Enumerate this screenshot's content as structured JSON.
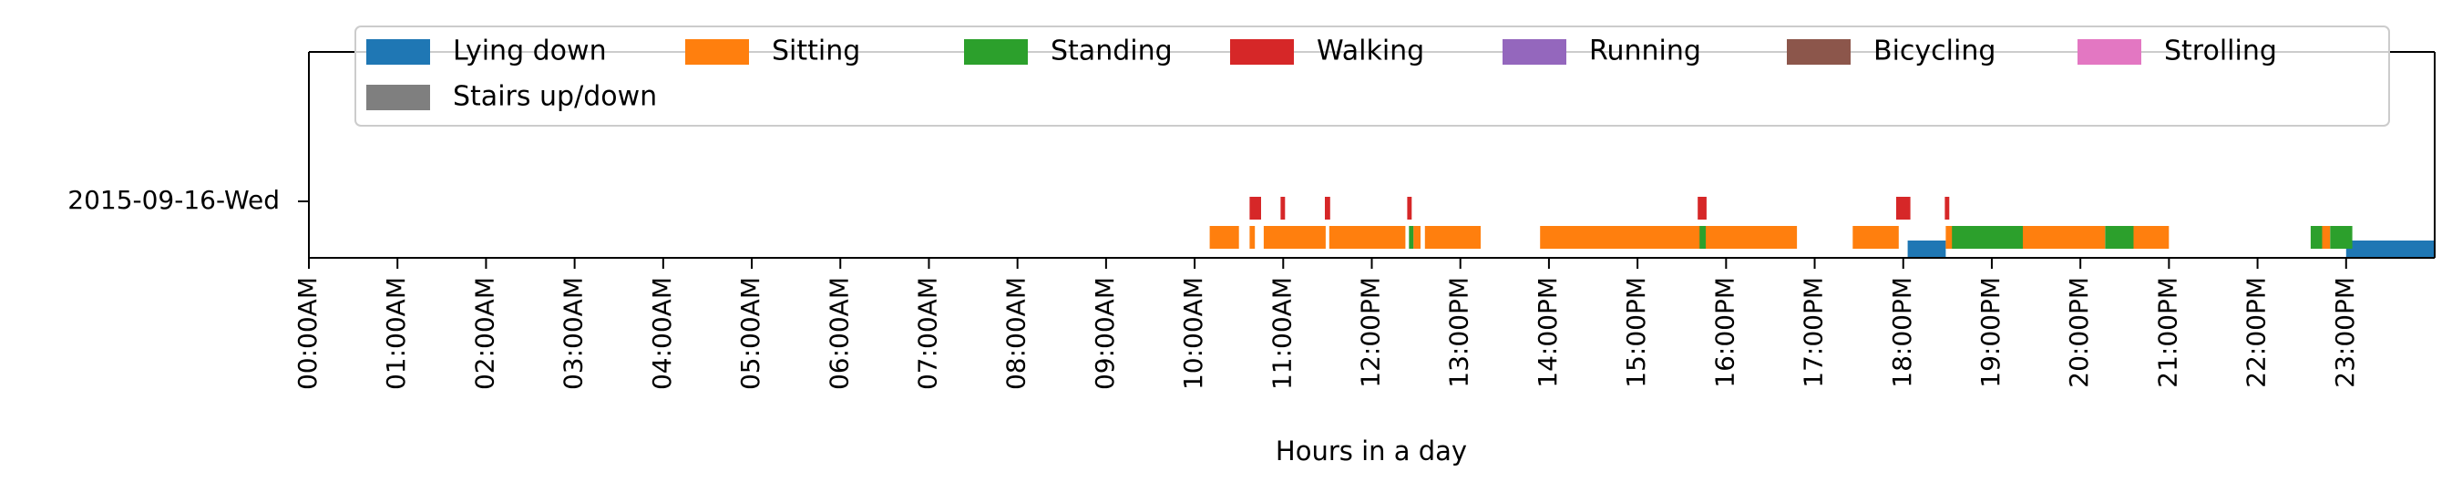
{
  "chart_data": {
    "type": "timeline",
    "ylabel_category": "2015-09-16-Wed",
    "xlabel": "Hours in a day",
    "xlim_hours": [
      0,
      24
    ],
    "xticks": [
      "00:00AM",
      "01:00AM",
      "02:00AM",
      "03:00AM",
      "04:00AM",
      "05:00AM",
      "06:00AM",
      "07:00AM",
      "08:00AM",
      "09:00AM",
      "10:00AM",
      "11:00AM",
      "12:00PM",
      "13:00PM",
      "14:00PM",
      "15:00PM",
      "16:00PM",
      "17:00PM",
      "18:00PM",
      "19:00PM",
      "20:00PM",
      "21:00PM",
      "22:00PM",
      "23:00PM"
    ],
    "grid": false,
    "legend": {
      "placement": "top",
      "columns": 7
    },
    "activities": [
      {
        "name": "Lying down",
        "color": "#1f77b4",
        "level": 0,
        "segments": [
          [
            18.05,
            18.48
          ],
          [
            23.0,
            24.0
          ]
        ]
      },
      {
        "name": "Sitting",
        "color": "#ff7f0e",
        "level": 1,
        "segments": [
          [
            10.17,
            10.5
          ],
          [
            10.62,
            10.68
          ],
          [
            10.78,
            11.48
          ],
          [
            11.52,
            12.38
          ],
          [
            12.47,
            12.55
          ],
          [
            12.6,
            13.23
          ],
          [
            13.9,
            15.72
          ],
          [
            15.77,
            16.8
          ],
          [
            17.43,
            17.95
          ],
          [
            18.48,
            18.58
          ],
          [
            19.33,
            20.28
          ],
          [
            20.55,
            21.0
          ],
          [
            22.73,
            22.82
          ]
        ]
      },
      {
        "name": "Standing",
        "color": "#2ca02c",
        "level": 1,
        "segments": [
          [
            12.42,
            12.47
          ],
          [
            15.7,
            15.77
          ],
          [
            18.55,
            19.35
          ],
          [
            20.28,
            20.6
          ],
          [
            22.6,
            22.73
          ],
          [
            22.82,
            23.07
          ]
        ]
      },
      {
        "name": "Walking",
        "color": "#d62728",
        "level": 2,
        "segments": [
          [
            10.62,
            10.75
          ],
          [
            10.97,
            11.02
          ],
          [
            11.47,
            11.53
          ],
          [
            12.4,
            12.45
          ],
          [
            15.68,
            15.78
          ],
          [
            17.92,
            18.08
          ],
          [
            18.47,
            18.52
          ]
        ]
      },
      {
        "name": "Running",
        "color": "#9467bd",
        "level": 3,
        "segments": []
      },
      {
        "name": "Bicycling",
        "color": "#8c564b",
        "level": 4,
        "segments": []
      },
      {
        "name": "Strolling",
        "color": "#e377c2",
        "level": 5,
        "segments": []
      },
      {
        "name": "Stairs up/down",
        "color": "#7f7f7f",
        "level": 6,
        "segments": []
      }
    ]
  }
}
